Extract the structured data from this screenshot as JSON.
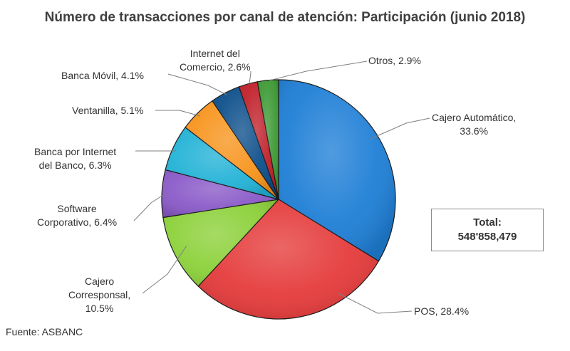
{
  "chart_data": {
    "type": "pie",
    "title": "Número de transacciones por canal de atención: Participación (junio 2018)",
    "slices": [
      {
        "name": "Cajero Automático",
        "value": 33.6,
        "label_lines": [
          "Cajero Automático,",
          "33.6%"
        ],
        "color": "#1f7fd6"
      },
      {
        "name": "POS",
        "value": 28.4,
        "label_lines": [
          "POS, 28.4%"
        ],
        "color": "#e53b3b"
      },
      {
        "name": "Cajero Corresponsal",
        "value": 10.5,
        "label_lines": [
          "Cajero",
          "Corresponsal,",
          "10.5%"
        ],
        "color": "#8cd13a"
      },
      {
        "name": "Software Corporativo",
        "value": 6.4,
        "label_lines": [
          "Software",
          "Corporativo, 6.4%"
        ],
        "color": "#8a5ac8"
      },
      {
        "name": "Banca por Internet del Banco",
        "value": 6.3,
        "label_lines": [
          "Banca por Internet",
          "del Banco, 6.3%"
        ],
        "color": "#22b2d6"
      },
      {
        "name": "Ventanilla",
        "value": 5.1,
        "label_lines": [
          "Ventanilla, 5.1%"
        ],
        "color": "#f7941d"
      },
      {
        "name": "Banca Móvil",
        "value": 4.1,
        "label_lines": [
          "Banca Móvil, 4.1%"
        ],
        "color": "#0d4f8b"
      },
      {
        "name": "Internet del Comercio",
        "value": 2.6,
        "label_lines": [
          "Internet del",
          "Comercio, 2.6%"
        ],
        "color": "#c0202a"
      },
      {
        "name": "Otros",
        "value": 2.9,
        "label_lines": [
          "Otros, 2.9%"
        ],
        "color": "#3e9a35"
      }
    ],
    "total_label": "Total:",
    "total_value": "548'858,479",
    "source": "Fuente: ASBANC"
  }
}
